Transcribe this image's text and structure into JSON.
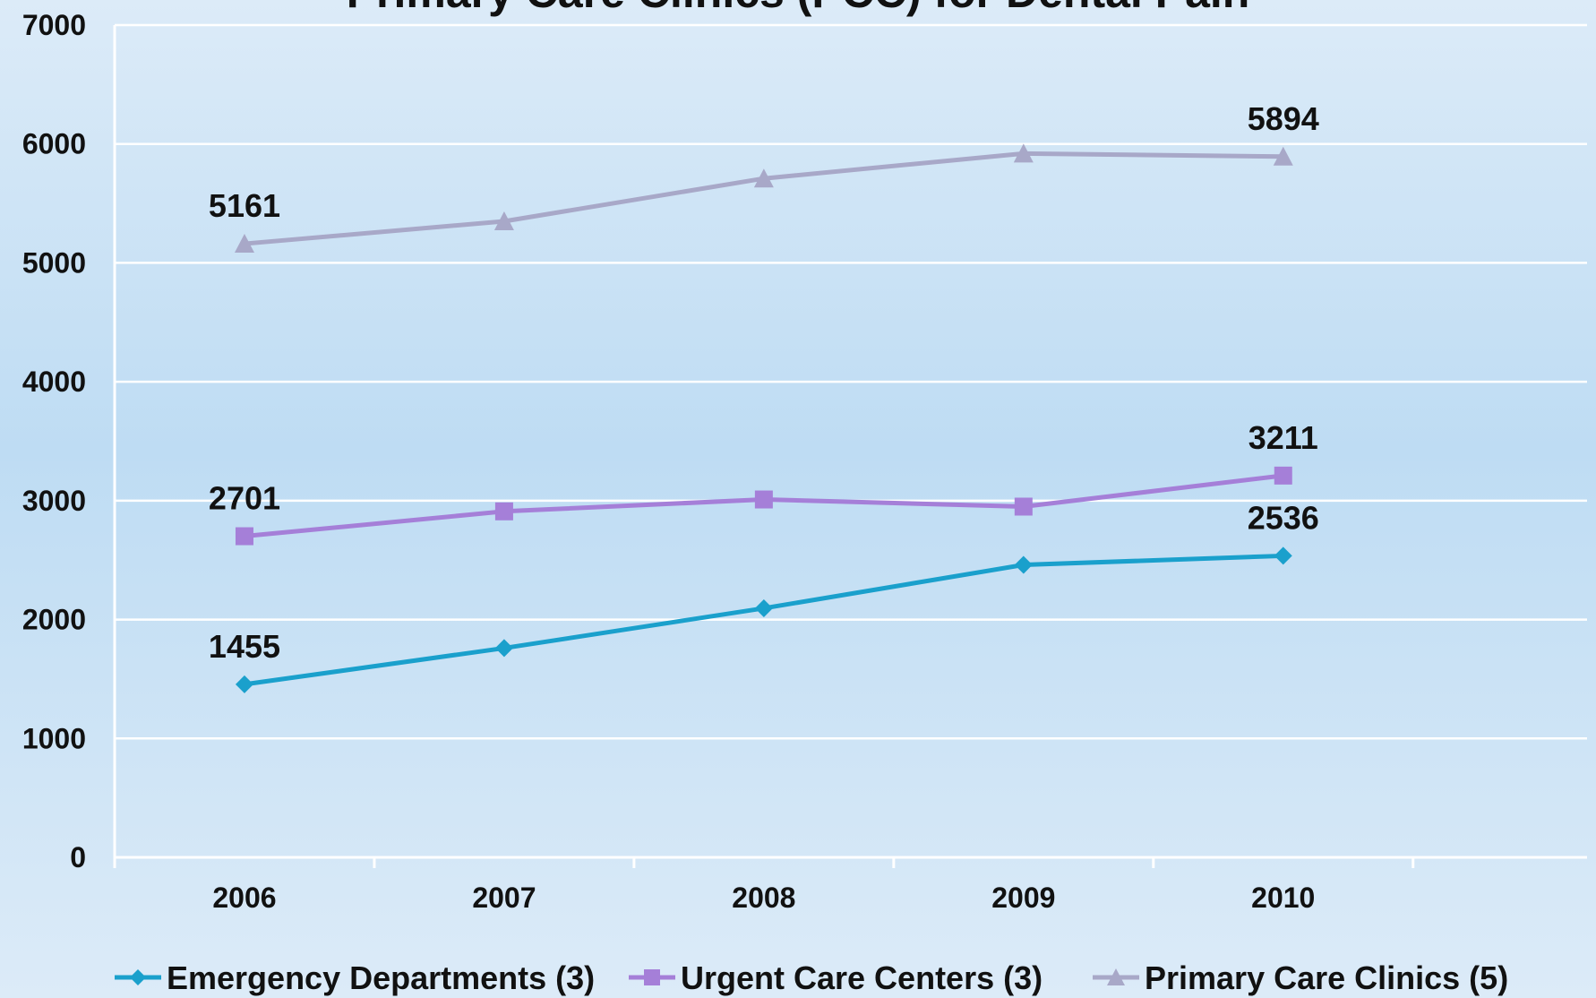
{
  "chart_data": {
    "type": "line",
    "title": "Primary Care Clinics (PCC) for Dental Pain",
    "categories": [
      "2006",
      "2007",
      "2008",
      "2009",
      "2010"
    ],
    "ylim": [
      0,
      7000
    ],
    "yticks": [
      0,
      1000,
      2000,
      3000,
      4000,
      5000,
      6000,
      7000
    ],
    "grid": true,
    "legend_position": "bottom",
    "series": [
      {
        "name": "Emergency Departments (3)",
        "values": [
          1455,
          1760,
          2095,
          2460,
          2536
        ],
        "labels": [
          "1455",
          null,
          null,
          null,
          "2536"
        ],
        "color": "#1aa0cc",
        "marker": "diamond"
      },
      {
        "name": "Urgent Care Centers (3)",
        "values": [
          2701,
          2910,
          3010,
          2950,
          3211
        ],
        "labels": [
          "2701",
          null,
          null,
          null,
          "3211"
        ],
        "color": "#a57fd8",
        "marker": "square"
      },
      {
        "name": "Primary Care Clinics (5)",
        "values": [
          5161,
          5350,
          5710,
          5920,
          5894
        ],
        "labels": [
          "5161",
          null,
          null,
          null,
          "5894"
        ],
        "color": "#a8a8c8",
        "marker": "triangle"
      }
    ]
  }
}
